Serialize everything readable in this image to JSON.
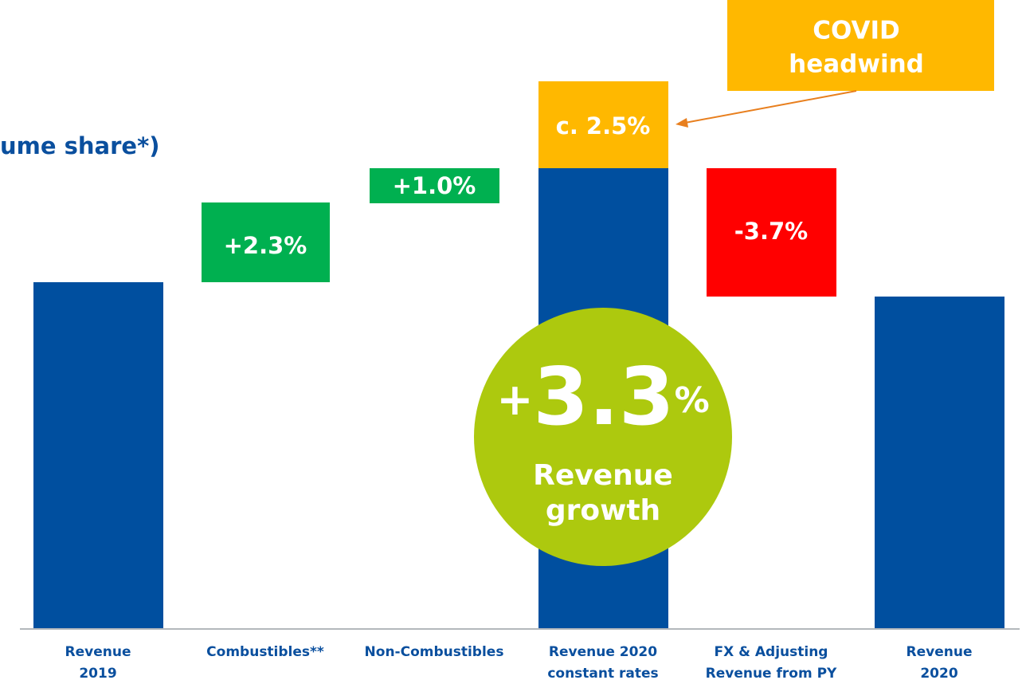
{
  "title_fragment": "ume share*)",
  "bars": [
    {
      "label": [
        "Revenue",
        "2019"
      ]
    },
    {
      "label": [
        "Combustibles**"
      ],
      "value_label": "+2.3%"
    },
    {
      "label": [
        "Non-Combustibles"
      ],
      "value_label": "+1.0%"
    },
    {
      "label": [
        "Revenue 2020",
        "constant rates"
      ],
      "value_label": "c. 2.5%"
    },
    {
      "label": [
        "FX & Adjusting",
        "Revenue from PY"
      ],
      "value_label": "-3.7%"
    },
    {
      "label": [
        "Revenue",
        "2020"
      ]
    }
  ],
  "callout": [
    "COVID",
    "headwind"
  ],
  "badge": {
    "prefix": "+",
    "value": "3.3",
    "suffix": "%",
    "lines": [
      "Revenue",
      "growth"
    ]
  }
}
